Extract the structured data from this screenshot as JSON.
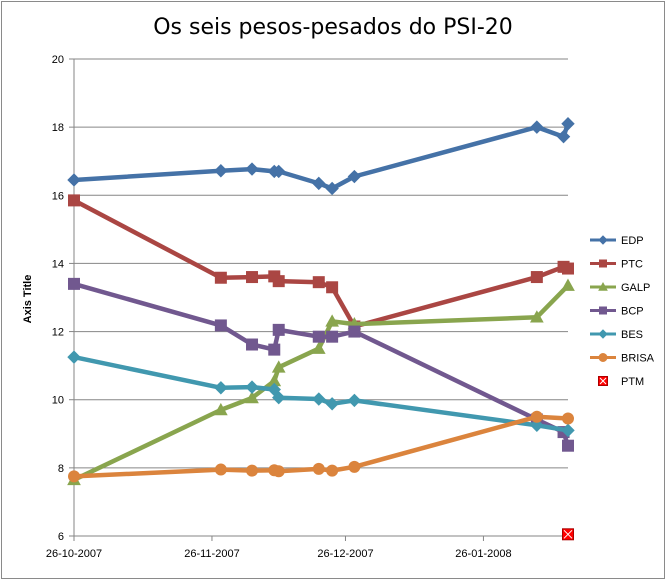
{
  "chart_data": {
    "type": "line",
    "title": "Os seis pesos-pesados do PSI-20",
    "xlabel": "",
    "ylabel": "Axis Title",
    "ylim": [
      6,
      20
    ],
    "yticks": [
      6,
      8,
      10,
      12,
      14,
      16,
      18,
      20
    ],
    "xlim": [
      "2007-10-26",
      "2008-02-14"
    ],
    "xtick_labels": [
      "26-10-2007",
      "26-11-2007",
      "26-12-2007",
      "26-01-2008"
    ],
    "xtick_dates": [
      "2007-10-26",
      "2007-11-26",
      "2007-12-26",
      "2008-01-26"
    ],
    "grid": "horizontal",
    "legend_position": "right",
    "series": [
      {
        "name": "EDP",
        "color": "#4572A7",
        "marker": "diamond",
        "x": [
          "2007-10-26",
          "2007-11-28",
          "2007-12-05",
          "2007-12-10",
          "2007-12-11",
          "2007-12-20",
          "2007-12-23",
          "2007-12-28",
          "2008-02-07",
          "2008-02-13",
          "2008-02-14"
        ],
        "y": [
          16.45,
          16.72,
          16.77,
          16.7,
          16.7,
          16.35,
          16.2,
          16.55,
          18.0,
          17.72,
          18.1
        ]
      },
      {
        "name": "PTC",
        "color": "#AA4643",
        "marker": "square",
        "x": [
          "2007-10-26",
          "2007-11-28",
          "2007-12-05",
          "2007-12-10",
          "2007-12-11",
          "2007-12-20",
          "2007-12-23",
          "2007-12-28",
          "2008-02-07",
          "2008-02-13",
          "2008-02-14"
        ],
        "y": [
          15.85,
          13.58,
          13.6,
          13.62,
          13.48,
          13.45,
          13.3,
          12.15,
          13.6,
          13.9,
          13.85
        ]
      },
      {
        "name": "GALP",
        "color": "#89A54E",
        "marker": "triangle",
        "x": [
          "2007-10-26",
          "2007-11-28",
          "2007-12-05",
          "2007-12-10",
          "2007-12-11",
          "2007-12-20",
          "2007-12-23",
          "2007-12-28",
          "2008-02-07",
          "2008-02-14"
        ],
        "y": [
          7.65,
          9.7,
          10.05,
          10.55,
          10.95,
          11.5,
          12.3,
          12.22,
          12.42,
          13.35
        ]
      },
      {
        "name": "BCP",
        "color": "#71588F",
        "marker": "square",
        "x": [
          "2007-10-26",
          "2007-11-28",
          "2007-12-05",
          "2007-12-10",
          "2007-12-11",
          "2007-12-20",
          "2007-12-23",
          "2007-12-28",
          "2008-02-07",
          "2008-02-13",
          "2008-02-14"
        ],
        "y": [
          13.4,
          12.18,
          11.62,
          11.47,
          12.05,
          11.85,
          11.85,
          12.0,
          9.42,
          9.05,
          8.65
        ]
      },
      {
        "name": "BES",
        "color": "#4198AF",
        "marker": "diamond",
        "x": [
          "2007-10-26",
          "2007-11-28",
          "2007-12-05",
          "2007-12-10",
          "2007-12-11",
          "2007-12-20",
          "2007-12-23",
          "2007-12-28",
          "2008-02-07",
          "2008-02-14"
        ],
        "y": [
          11.25,
          10.35,
          10.37,
          10.3,
          10.06,
          10.02,
          9.88,
          9.98,
          9.25,
          9.1
        ]
      },
      {
        "name": "BRISA",
        "color": "#DB843D",
        "marker": "circle",
        "x": [
          "2007-10-26",
          "2007-11-28",
          "2007-12-05",
          "2007-12-10",
          "2007-12-11",
          "2007-12-20",
          "2007-12-23",
          "2007-12-28",
          "2008-02-07",
          "2008-02-14"
        ],
        "y": [
          7.75,
          7.95,
          7.92,
          7.93,
          7.9,
          7.97,
          7.92,
          8.03,
          9.5,
          9.45
        ]
      },
      {
        "name": "PTM",
        "color": "#FF0000",
        "marker": "x-square",
        "x": [
          "2008-02-14"
        ],
        "y": [
          6.05
        ]
      }
    ]
  }
}
